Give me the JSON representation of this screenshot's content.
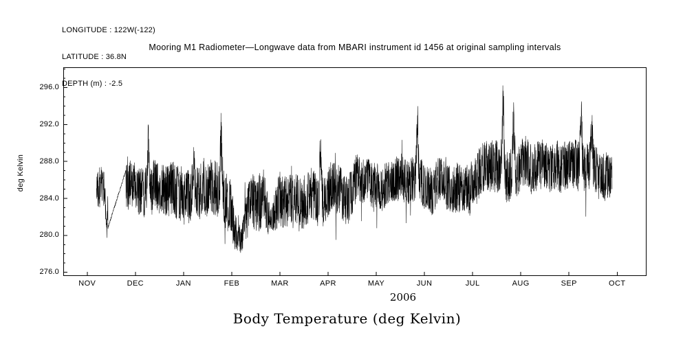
{
  "header": {
    "longitude": "LONGITUDE : 122W(-122)",
    "latitude": "LATITUDE : 36.8N",
    "depth": "DEPTH (m) : -2.5"
  },
  "title": "Mooring M1 Radiometer—Longwave data from MBARI instrument id 1456 at original sampling intervals",
  "footer": {
    "year": "2006",
    "caption": "Body Temperature (deg Kelvin)"
  },
  "chart_data": {
    "type": "line",
    "title": "Mooring M1 Radiometer—Longwave data from MBARI instrument id 1456 at original sampling intervals",
    "xlabel": "2006",
    "ylabel": "deg Kelvin",
    "ylim": [
      275.6,
      298.2
    ],
    "y_ticks": [
      276.0,
      280.0,
      284.0,
      288.0,
      292.0,
      296.0
    ],
    "y_minor_step": 1.0,
    "x_tick_labels": [
      "NOV",
      "DEC",
      "JAN",
      "FEB",
      "MAR",
      "APR",
      "MAY",
      "JUN",
      "JUL",
      "AUG",
      "SEP",
      "OCT"
    ],
    "axis": {
      "x_tick_start_frac": 0.041,
      "x_tick_step_frac": 0.0826,
      "grid": false,
      "box": true,
      "line_color": "#000000"
    },
    "series": [
      {
        "name": "Body Temperature (deg Kelvin)",
        "color": "#000000",
        "samples": 3200,
        "seed": 42,
        "x_start_frac": 0.057,
        "x_end_frac": 0.941,
        "monthly_mean": [
          285.5,
          285.0,
          284.6,
          283.6,
          283.8,
          285.0,
          285.3,
          285.8,
          286.2,
          287.8,
          286.9,
          287.3
        ],
        "monthly_amplitude": [
          2.2,
          2.8,
          3.0,
          3.2,
          2.8,
          2.6,
          2.4,
          2.6,
          2.8,
          2.6,
          2.6,
          2.6
        ],
        "clip": [
          276.6,
          297.5
        ],
        "gap_segment": {
          "from": 0.0765,
          "to": 0.1073,
          "v_from": 280.8,
          "v_to": 287.0
        },
        "events": [
          {
            "frac": 0.0745,
            "delta": -4.5,
            "width": 0.002
          },
          {
            "frac": 0.146,
            "delta": 4.5,
            "width": 0.002
          },
          {
            "frac": 0.223,
            "delta": 4.5,
            "width": 0.002
          },
          {
            "frac": 0.271,
            "delta": 6.0,
            "width": 0.0022
          },
          {
            "frac": 0.302,
            "delta": -4.8,
            "width": 0.012
          },
          {
            "frac": 0.356,
            "delta": -3.0,
            "width": 0.008
          },
          {
            "frac": 0.441,
            "delta": 5.5,
            "width": 0.002
          },
          {
            "frac": 0.607,
            "delta": 7.0,
            "width": 0.002
          },
          {
            "frac": 0.735,
            "delta": 1.6,
            "width": 0.02
          },
          {
            "frac": 0.754,
            "delta": 8.2,
            "width": 0.0022
          },
          {
            "frac": 0.772,
            "delta": 5.2,
            "width": 0.0025
          },
          {
            "frac": 0.888,
            "delta": 6.0,
            "width": 0.002
          },
          {
            "frac": 0.906,
            "delta": 4.5,
            "width": 0.002
          }
        ]
      }
    ]
  }
}
